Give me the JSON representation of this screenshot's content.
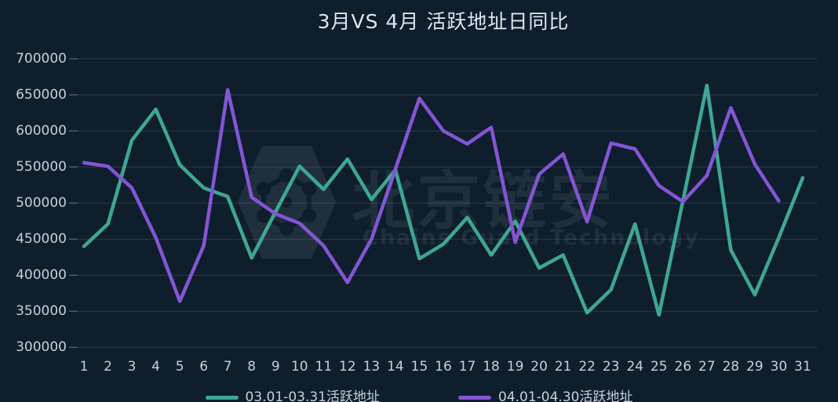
{
  "title": "3月VS 4月 活跃地址日同比",
  "watermark": {
    "brand": "北京链安",
    "subtitle": "Chains Guard Technology",
    "logo_icon": "hexagon-shield-network-icon"
  },
  "legend": [
    {
      "label": "03.01-03.31活跃地址",
      "color": "#3ea793"
    },
    {
      "label": "04.01-04.30活跃地址",
      "color": "#8455d4"
    }
  ],
  "colors": {
    "background": "#0e1e2d",
    "march_line": "#3ea793",
    "april_line": "#8455d4",
    "grid": "rgba(190,205,220,0.16)",
    "tick": "rgba(190,205,220,0.35)",
    "axis_text": "#c5d1da",
    "title_text": "#dfe8ee",
    "watermark_text": "rgba(190,205,220,0.10)"
  },
  "chart_data": {
    "type": "line",
    "title": "3月VS 4月 活跃地址日同比",
    "x": [
      1,
      2,
      3,
      4,
      5,
      6,
      7,
      8,
      9,
      10,
      11,
      12,
      13,
      14,
      15,
      16,
      17,
      18,
      19,
      20,
      21,
      22,
      23,
      24,
      25,
      26,
      27,
      28,
      29,
      30,
      31
    ],
    "xlabel": "",
    "ylabel": "",
    "ylim": [
      300000,
      700000
    ],
    "y_ticks": [
      700000,
      650000,
      600000,
      550000,
      500000,
      450000,
      400000,
      350000,
      300000
    ],
    "grid": true,
    "legend_position": "bottom",
    "series": [
      {
        "name": "03.01-03.31活跃地址",
        "color": "#3ea793",
        "values": [
          440000,
          471000,
          587000,
          630000,
          553000,
          521000,
          509000,
          424000,
          488000,
          551000,
          519000,
          561000,
          505000,
          546000,
          423000,
          443000,
          480000,
          428000,
          475000,
          410000,
          428000,
          348000,
          380000,
          471000,
          345000,
          503000,
          663000,
          435000,
          373000,
          452000,
          535000
        ]
      },
      {
        "name": "04.01-04.30活跃地址",
        "color": "#8455d4",
        "values": [
          556000,
          551000,
          521000,
          452000,
          364000,
          441000,
          657000,
          508000,
          485000,
          472000,
          441000,
          390000,
          450000,
          547000,
          645000,
          600000,
          582000,
          605000,
          446000,
          540000,
          568000,
          474000,
          583000,
          575000,
          524000,
          502000,
          538000,
          632000,
          554000,
          503000
        ]
      }
    ]
  }
}
